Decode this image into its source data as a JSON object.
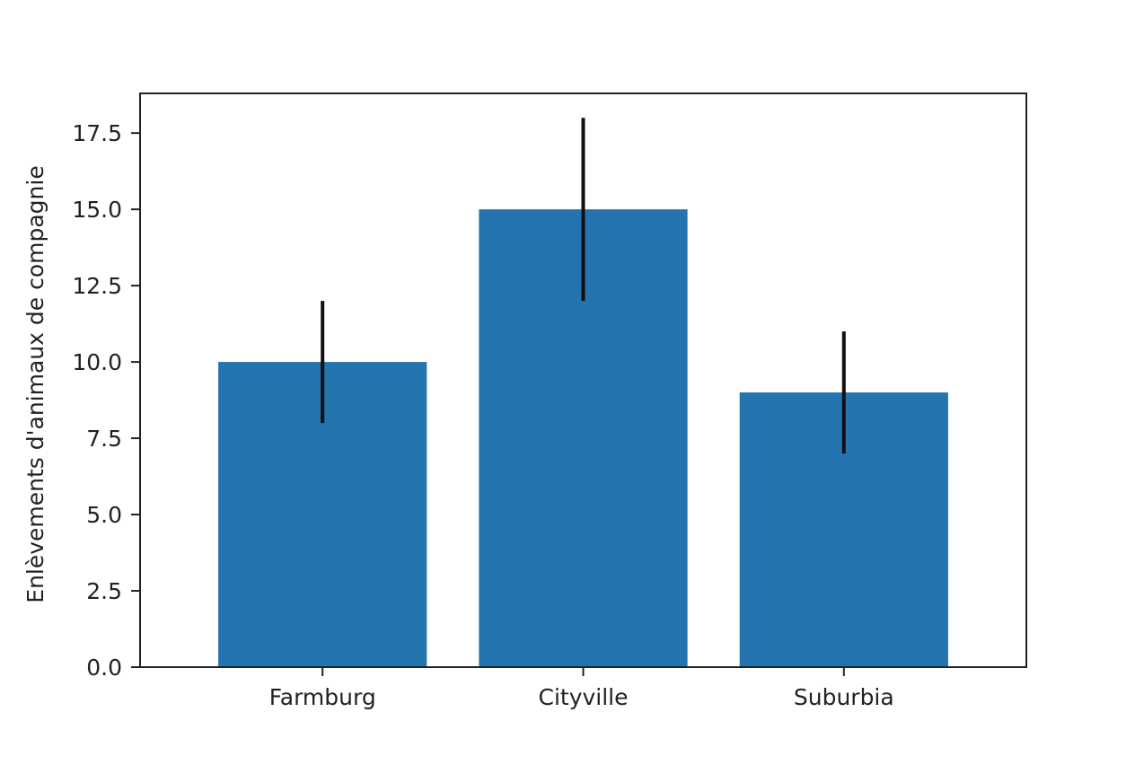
{
  "chart_data": {
    "type": "bar",
    "categories": [
      "Farmburg",
      "Cityville",
      "Suburbia"
    ],
    "values": [
      10,
      15,
      9
    ],
    "error_low": [
      8,
      12,
      7
    ],
    "error_high": [
      12,
      18,
      11
    ],
    "title": "",
    "xlabel": "",
    "ylabel": "Enlèvements d'animaux de compagnie",
    "ylim": [
      0,
      18.8
    ],
    "yticks": [
      0,
      2.5,
      5,
      7.5,
      10,
      12.5,
      15,
      17.5
    ],
    "ytick_labels": [
      "0.0",
      "2.5",
      "5.0",
      "7.5",
      "10.0",
      "12.5",
      "15.0",
      "17.5"
    ],
    "grid": false,
    "legend": "none",
    "bar_color": "#2474b0",
    "error_bar_color": "#111111"
  }
}
